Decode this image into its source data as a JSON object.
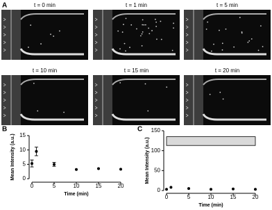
{
  "panel_labels": [
    "A",
    "B",
    "C"
  ],
  "images": [
    {
      "title": "t = 0 min"
    },
    {
      "title": "t = 1 min"
    },
    {
      "title": "t = 5 min"
    },
    {
      "title": "t = 10 min"
    },
    {
      "title": "t = 15 min"
    },
    {
      "title": "t = 20 min"
    }
  ],
  "chart_data": [
    {
      "type": "scatter",
      "x": [
        0,
        1,
        5,
        10,
        15,
        20
      ],
      "values": [
        5.3,
        9.5,
        5,
        3.2,
        3.5,
        3.3
      ],
      "errors": [
        1.2,
        1.5,
        0.7,
        null,
        null,
        null
      ],
      "color": "#000000",
      "xlim": [
        0,
        20
      ],
      "xticks": [
        0,
        5,
        10,
        15,
        20
      ],
      "ylim": [
        0,
        15
      ],
      "yticks": [
        0,
        5,
        10,
        15
      ],
      "xlabel": "Time (min)",
      "ylabel": "Mean Intensity (a.u.)"
    },
    {
      "type": "scatter",
      "x": [
        0,
        1,
        5,
        10,
        15,
        20
      ],
      "values": [
        3,
        8,
        5,
        3,
        4,
        3
      ],
      "color": "#000000",
      "band": {
        "x": [
          0,
          20
        ],
        "y": [
          113,
          135
        ],
        "color": "#d9d9d9"
      },
      "xlim": [
        0,
        20
      ],
      "xticks": [
        0,
        5,
        10,
        15,
        20
      ],
      "ylim": [
        0,
        150
      ],
      "yticks": [
        0,
        50,
        100,
        150
      ],
      "xlabel": "Time (min)",
      "ylabel": "Mean Intensity (a.u.)"
    }
  ]
}
